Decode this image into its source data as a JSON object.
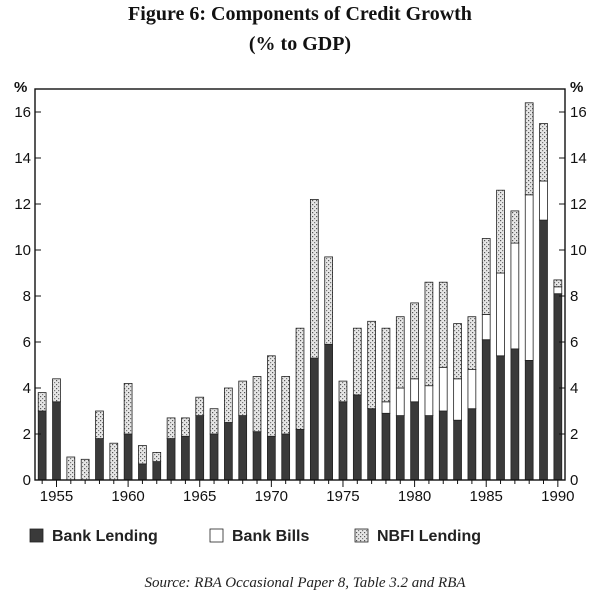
{
  "chart_data": {
    "type": "bar",
    "stacked": true,
    "title": "Figure 6: Components of Credit Growth",
    "subtitle": "(% to GDP)",
    "ylabel_left": "%",
    "ylabel_right": "%",
    "ylim": [
      0,
      17
    ],
    "yticks": [
      0,
      2,
      4,
      6,
      8,
      10,
      12,
      14,
      16
    ],
    "xticks": [
      1955,
      1960,
      1965,
      1970,
      1975,
      1980,
      1985,
      1990
    ],
    "legend_position": "bottom",
    "source": "Source: RBA Occasional Paper 8, Table 3.2 and RBA",
    "colors": {
      "bank_lending": "#3a3a3a",
      "bank_bills": "#ffffff",
      "nbfi_lending": "#cfcfcf"
    },
    "categories": [
      1954,
      1955,
      1956,
      1957,
      1958,
      1959,
      1960,
      1961,
      1962,
      1963,
      1964,
      1965,
      1966,
      1967,
      1968,
      1969,
      1970,
      1971,
      1972,
      1973,
      1974,
      1975,
      1976,
      1977,
      1978,
      1979,
      1980,
      1981,
      1982,
      1983,
      1984,
      1985,
      1986,
      1987,
      1988,
      1989,
      1990
    ],
    "series": [
      {
        "name": "Bank Lending",
        "values": [
          3.0,
          3.4,
          0.0,
          0.0,
          1.8,
          0.0,
          2.0,
          0.7,
          0.8,
          1.8,
          1.9,
          2.8,
          2.0,
          2.5,
          2.8,
          2.1,
          1.9,
          2.0,
          2.2,
          5.3,
          5.9,
          3.4,
          3.7,
          3.1,
          2.9,
          2.8,
          3.4,
          2.8,
          3.0,
          2.6,
          3.1,
          6.1,
          5.4,
          5.7,
          5.2,
          11.3,
          8.1
        ]
      },
      {
        "name": "Bank Bills",
        "values": [
          0.0,
          0.0,
          0.0,
          0.0,
          0.0,
          0.0,
          0.0,
          0.0,
          0.0,
          0.0,
          0.0,
          0.0,
          0.0,
          0.0,
          0.0,
          0.0,
          0.0,
          0.0,
          0.0,
          0.0,
          0.0,
          0.0,
          0.0,
          0.0,
          0.5,
          1.2,
          1.0,
          1.3,
          1.9,
          1.8,
          1.7,
          1.1,
          3.6,
          4.6,
          7.2,
          1.7,
          0.3
        ]
      },
      {
        "name": "NBFI Lending",
        "values": [
          0.8,
          1.0,
          1.0,
          0.9,
          1.2,
          1.6,
          2.2,
          0.8,
          0.4,
          0.9,
          0.8,
          0.8,
          1.1,
          1.5,
          1.5,
          2.4,
          3.5,
          2.5,
          4.4,
          6.9,
          3.8,
          0.9,
          2.9,
          3.8,
          3.2,
          3.1,
          3.3,
          4.5,
          3.7,
          2.4,
          2.3,
          3.3,
          3.6,
          1.4,
          4.0,
          2.5,
          0.3
        ]
      }
    ]
  }
}
